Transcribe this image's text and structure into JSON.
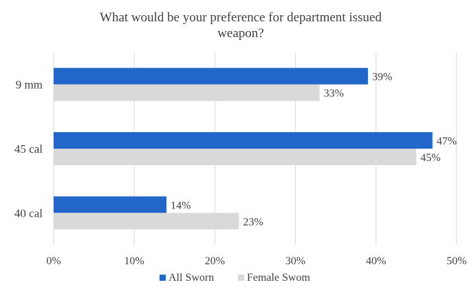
{
  "chart_data": {
    "type": "bar",
    "orientation": "horizontal",
    "title_lines": [
      "What would be your preference for department issued",
      "weapon?"
    ],
    "categories": [
      "9 mm",
      "45 cal",
      "40 cal"
    ],
    "series": [
      {
        "name": "All Sworn",
        "values": [
          39,
          47,
          14
        ],
        "labels": [
          "39%",
          "47%",
          "14%"
        ],
        "color": "#2166c8"
      },
      {
        "name": "Female Swom",
        "values": [
          33,
          45,
          23
        ],
        "labels": [
          "33%",
          "45%",
          "23%"
        ],
        "color": "#d9d9d9"
      }
    ],
    "xlim": [
      0,
      50
    ],
    "x_ticks": [
      0,
      10,
      20,
      30,
      40,
      50
    ],
    "x_tick_labels": [
      "0%",
      "10%",
      "20%",
      "30%",
      "40%",
      "50%"
    ],
    "grid": "vertical",
    "gridline_color": "#d9d9d9",
    "legend_position": "bottom",
    "xlabel": "",
    "ylabel": ""
  }
}
